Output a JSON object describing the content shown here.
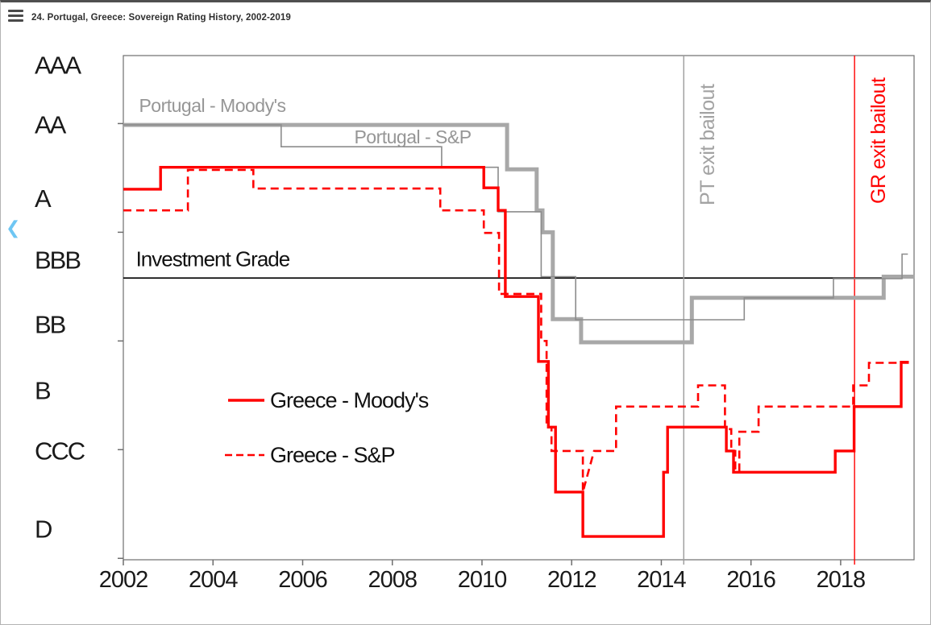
{
  "window": {
    "title": "24. Portugal, Greece: Sovereign Rating History, 2002-2019"
  },
  "icons": {
    "menu": "hamburger-menu",
    "back_chevron_char": "❮"
  },
  "colors": {
    "greece_red": "#ff0000",
    "portugal_moodys_gray": "#a8a8a8",
    "portugal_sp_gray": "#8c8c8c",
    "pt_event_gray": "#9b9b9b",
    "axis_text": "#1a1a1a",
    "inline_label_gray": "#969696",
    "chevron_blue": "#6ec6f3"
  },
  "chart_data": {
    "type": "line",
    "title": "Portugal, Greece: Sovereign Rating History, 2002-2019",
    "xlabel": "",
    "ylabel": "",
    "x_range": [
      2002,
      2019.64
    ],
    "y_range_levels": [
      0.54,
      8.15
    ],
    "level_scale_note": "Rating bands as numeric levels: D=1, CCC=2, B=3, BB=4, BBB=5, A=6, AA=7, AAA=8; fractions = notches (+/- one third per notch)",
    "x_ticks": [
      2002,
      2004,
      2006,
      2008,
      2010,
      2012,
      2014,
      2016,
      2018
    ],
    "y_tick_levels": [
      7.12,
      5.48,
      3.84,
      2.2,
      0.56
    ],
    "y_labels": [
      {
        "text": "AAA",
        "level": 8.0
      },
      {
        "text": "AA",
        "level": 7.1
      },
      {
        "text": "A",
        "level": 5.99
      },
      {
        "text": "BBB",
        "level": 5.06
      },
      {
        "text": "BB",
        "level": 4.09
      },
      {
        "text": "B",
        "level": 3.09
      },
      {
        "text": "CCC",
        "level": 2.18
      },
      {
        "text": "D",
        "level": 1.0
      }
    ],
    "investment_grade_line": {
      "label": "Investment Grade",
      "level": 4.79,
      "label_year": 2002.28,
      "label_level": 5.08
    },
    "events": [
      {
        "label": "PT exit bailout",
        "year": 2014.5,
        "color": "#9b9b9b",
        "text_color": "#a3a3a3",
        "label_center_level": 6.8
      },
      {
        "label": "GR exit bailout",
        "year": 2018.31,
        "color": "#ff0000",
        "text_color": "#ff0000",
        "label_center_level": 6.86
      }
    ],
    "inline_labels": [
      {
        "text": "Portugal - Moody's",
        "year": 2002.35,
        "level": 7.39
      },
      {
        "text": "Portugal - S&P",
        "year": 2007.15,
        "level": 6.92
      }
    ],
    "legend": {
      "position": "center-left-inside",
      "items": [
        {
          "label": "Greece - Moody's",
          "dash": false
        },
        {
          "label": "Greece - S&P",
          "dash": true
        }
      ]
    },
    "series": [
      {
        "name": "Portugal - Moody's",
        "style": "solid",
        "color": "#a8a8a8",
        "width": 5,
        "points": [
          [
            2002.0,
            7.1
          ],
          [
            2010.56,
            7.1
          ],
          [
            2010.56,
            6.43
          ],
          [
            2011.22,
            6.43
          ],
          [
            2011.22,
            5.81
          ],
          [
            2011.35,
            5.81
          ],
          [
            2011.35,
            5.48
          ],
          [
            2011.58,
            5.48
          ],
          [
            2011.58,
            4.17
          ],
          [
            2012.21,
            4.17
          ],
          [
            2012.21,
            3.82
          ],
          [
            2014.68,
            3.82
          ],
          [
            2014.68,
            4.49
          ],
          [
            2018.96,
            4.49
          ],
          [
            2018.96,
            4.81
          ],
          [
            2019.64,
            4.81
          ]
        ]
      },
      {
        "name": "Portugal - S&P",
        "style": "solid",
        "color": "#8c8c8c",
        "width": 1.6,
        "points": [
          [
            2002.0,
            7.1
          ],
          [
            2005.52,
            7.1
          ],
          [
            2005.52,
            6.77
          ],
          [
            2009.1,
            6.77
          ],
          [
            2009.1,
            6.46
          ],
          [
            2010.36,
            6.46
          ],
          [
            2010.36,
            5.79
          ],
          [
            2011.32,
            5.79
          ],
          [
            2011.32,
            4.81
          ],
          [
            2012.09,
            4.81
          ],
          [
            2012.09,
            4.16
          ],
          [
            2015.85,
            4.16
          ],
          [
            2015.85,
            4.49
          ],
          [
            2017.84,
            4.49
          ],
          [
            2017.84,
            4.78
          ],
          [
            2019.37,
            4.78
          ],
          [
            2019.37,
            5.15
          ],
          [
            2019.5,
            5.15
          ]
        ]
      },
      {
        "name": "Greece - S&P",
        "style": "dashed",
        "color": "#ff0000",
        "width": 2.6,
        "points": [
          [
            2002.0,
            5.81
          ],
          [
            2003.44,
            5.81
          ],
          [
            2003.44,
            6.42
          ],
          [
            2004.9,
            6.42
          ],
          [
            2004.9,
            6.14
          ],
          [
            2009.07,
            6.14
          ],
          [
            2009.07,
            5.81
          ],
          [
            2010.04,
            5.81
          ],
          [
            2010.04,
            5.47
          ],
          [
            2010.38,
            5.47
          ],
          [
            2010.38,
            4.55
          ],
          [
            2011.32,
            4.55
          ],
          [
            2011.32,
            3.84
          ],
          [
            2011.44,
            3.84
          ],
          [
            2011.44,
            2.54
          ],
          [
            2011.55,
            2.54
          ],
          [
            2011.55,
            2.18
          ],
          [
            2012.25,
            2.18
          ],
          [
            2012.25,
            1.56
          ],
          [
            2012.5,
            2.18
          ],
          [
            2012.99,
            2.18
          ],
          [
            2012.99,
            2.85
          ],
          [
            2014.82,
            2.85
          ],
          [
            2014.82,
            3.17
          ],
          [
            2015.42,
            3.17
          ],
          [
            2015.42,
            2.51
          ],
          [
            2015.56,
            2.51
          ],
          [
            2015.56,
            2.18
          ],
          [
            2015.65,
            2.18
          ],
          [
            2015.65,
            1.88
          ],
          [
            2015.74,
            1.88
          ],
          [
            2015.74,
            2.47
          ],
          [
            2016.17,
            2.47
          ],
          [
            2016.17,
            2.85
          ],
          [
            2018.28,
            2.85
          ],
          [
            2018.28,
            3.17
          ],
          [
            2018.63,
            3.17
          ],
          [
            2018.63,
            3.51
          ],
          [
            2019.52,
            3.51
          ]
        ]
      },
      {
        "name": "Greece - Moody's",
        "style": "solid",
        "color": "#ff0000",
        "width": 3.4,
        "points": [
          [
            2002.0,
            6.13
          ],
          [
            2002.83,
            6.13
          ],
          [
            2002.83,
            6.46
          ],
          [
            2010.04,
            6.46
          ],
          [
            2010.04,
            6.15
          ],
          [
            2010.36,
            6.15
          ],
          [
            2010.36,
            5.81
          ],
          [
            2010.52,
            5.81
          ],
          [
            2010.52,
            4.51
          ],
          [
            2011.26,
            4.51
          ],
          [
            2011.26,
            3.53
          ],
          [
            2011.48,
            3.53
          ],
          [
            2011.48,
            2.54
          ],
          [
            2011.64,
            2.54
          ],
          [
            2011.64,
            1.56
          ],
          [
            2012.25,
            1.56
          ],
          [
            2012.25,
            0.89
          ],
          [
            2014.05,
            0.89
          ],
          [
            2014.05,
            1.86
          ],
          [
            2014.14,
            1.86
          ],
          [
            2014.14,
            2.54
          ],
          [
            2015.45,
            2.54
          ],
          [
            2015.45,
            2.18
          ],
          [
            2015.61,
            2.18
          ],
          [
            2015.61,
            1.86
          ],
          [
            2017.88,
            1.86
          ],
          [
            2017.88,
            2.18
          ],
          [
            2018.3,
            2.18
          ],
          [
            2018.3,
            2.85
          ],
          [
            2019.35,
            2.85
          ],
          [
            2019.35,
            3.52
          ],
          [
            2019.52,
            3.52
          ]
        ]
      }
    ]
  }
}
